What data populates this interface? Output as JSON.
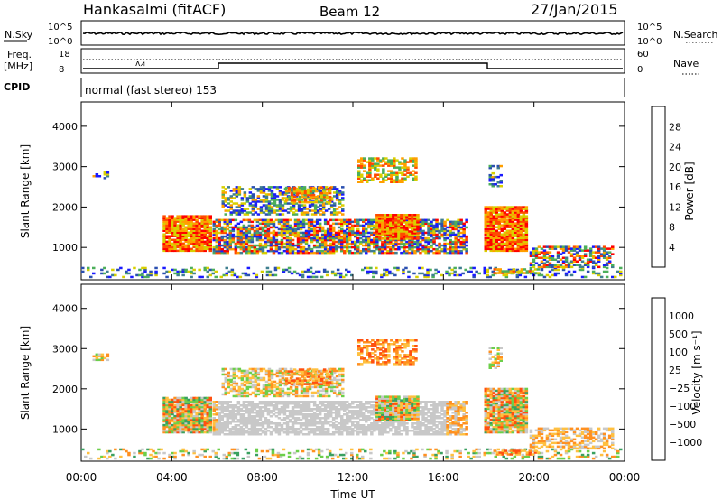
{
  "header": {
    "station": "Hankasalmi (fitACF)",
    "beam": "Beam 12",
    "date": "27/Jan/2015"
  },
  "top_panels": {
    "nsky_label": "N.Sky",
    "nsearch_label": "N.Search",
    "nsky_ticks": [
      "10^5",
      "10^0"
    ],
    "nsearch_ticks": [
      "10^5",
      "10^0"
    ],
    "freq_label_1": "Freq.",
    "freq_label_2": "[MHz]",
    "freq_ticks": [
      "18",
      "8"
    ],
    "nave_ticks": [
      "60",
      "0"
    ],
    "nave_label": "Nave",
    "cpid_label": "CPID",
    "cpid_text": "normal (fast stereo) 153"
  },
  "chart_data": [
    {
      "type": "heatmap",
      "name": "power",
      "ylabel": "Slant Range [km]",
      "y_ticks": [
        "1000",
        "2000",
        "3000",
        "4000"
      ],
      "ylim": [
        200,
        4600
      ],
      "colorbar_label": "Power [dB]",
      "colorbar_ticks": [
        "4",
        "8",
        "12",
        "16",
        "20",
        "24",
        "28"
      ],
      "colorbar_colors": [
        "#1a1aff",
        "#2a4fb0",
        "#3f7f8f",
        "#4caf5a",
        "#d8d000",
        "#ff9f00",
        "#ff4a00",
        "#ff0000"
      ]
    },
    {
      "type": "heatmap",
      "name": "velocity",
      "ylabel": "Slant Range [km]",
      "y_ticks": [
        "1000",
        "2000",
        "3000",
        "4000"
      ],
      "ylim": [
        200,
        4600
      ],
      "colorbar_label": "Velocity [m s⁻¹]",
      "colorbar_ticks": [
        "1000",
        "500",
        "100",
        "25",
        "−25",
        "−100",
        "−500",
        "−1000"
      ],
      "colorbar_colors": [
        "#2a3fb0",
        "#2f77a0",
        "#3aa060",
        "#6ccf4a",
        "#c8c8c8",
        "#ffc040",
        "#ff9020",
        "#ff5010",
        "#ff0000"
      ]
    }
  ],
  "x_axis": {
    "ticks": [
      "00:00",
      "04:00",
      "08:00",
      "12:00",
      "16:00",
      "20:00",
      "00:00"
    ],
    "label": "Time UT"
  }
}
